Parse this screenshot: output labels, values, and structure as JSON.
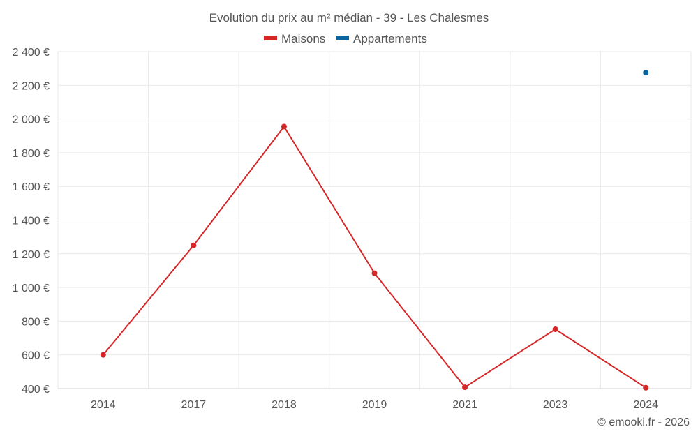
{
  "chart_data": {
    "type": "line",
    "title": "Evolution du prix au m² médian - 39 - Les Chalesmes",
    "categories": [
      "2014",
      "2017",
      "2018",
      "2019",
      "2021",
      "2023",
      "2024"
    ],
    "series": [
      {
        "name": "Maisons",
        "color": "#d62728",
        "values": [
          600,
          1250,
          1955,
          1085,
          408,
          752,
          405
        ]
      },
      {
        "name": "Appartements",
        "color": "#0b63a0",
        "values": [
          null,
          null,
          null,
          null,
          null,
          null,
          2275
        ]
      }
    ],
    "ylim": [
      400,
      2400
    ],
    "yticks": [
      400,
      600,
      800,
      1000,
      1200,
      1400,
      1600,
      1800,
      2000,
      2200,
      2400
    ],
    "ytick_labels": [
      "400 €",
      "600 €",
      "800 €",
      "1 000 €",
      "1 200 €",
      "1 400 €",
      "1 600 €",
      "1 800 €",
      "2 000 €",
      "2 200 €",
      "2 400 €"
    ],
    "grid": true,
    "legend": "top-center"
  },
  "credit": "© emooki.fr - 2026"
}
